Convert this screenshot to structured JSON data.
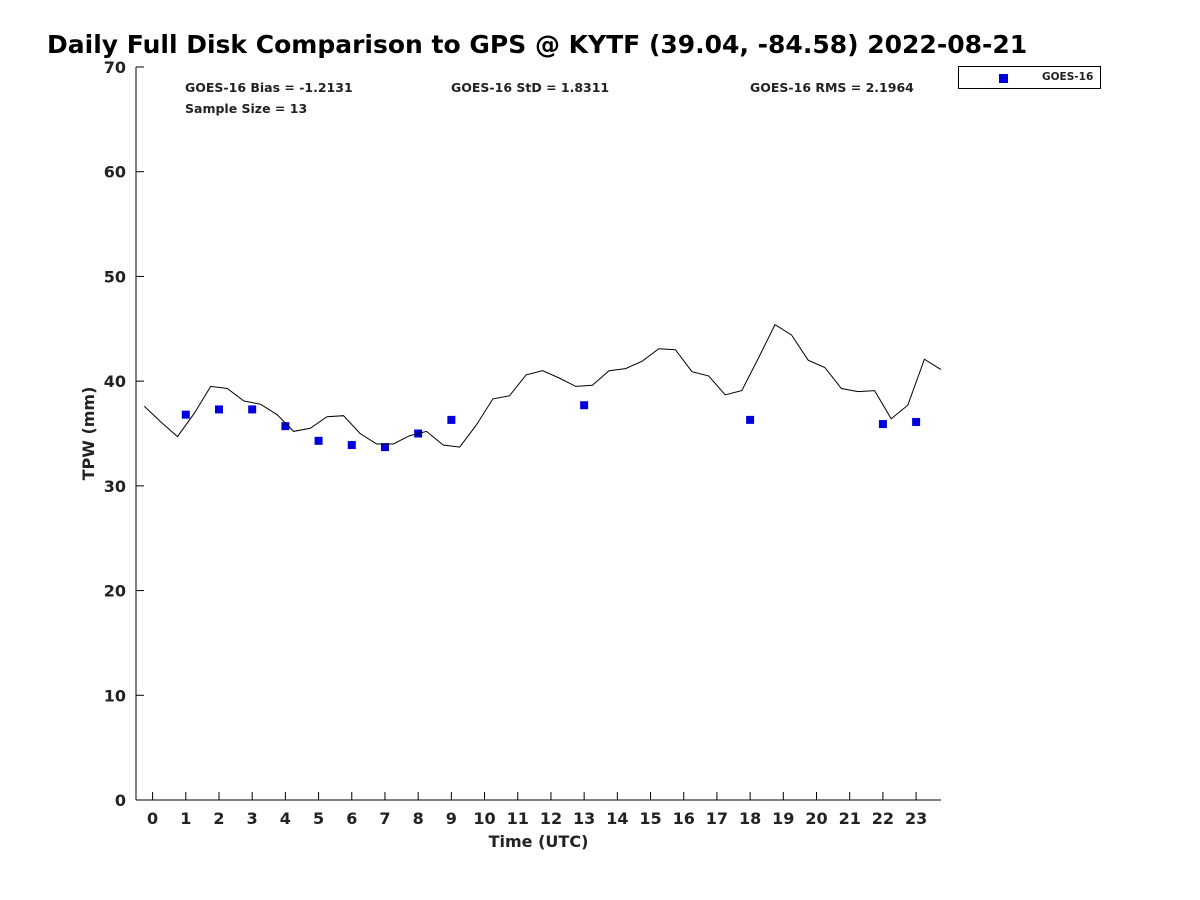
{
  "chart_data": {
    "type": "scatter",
    "title": "Daily Full Disk Comparison to GPS @ KYTF (39.04, -84.58) 2022-08-21",
    "xlabel": "Time (UTC)",
    "ylabel": "TPW (mm)",
    "xlim": [
      -0.5,
      23.75
    ],
    "ylim": [
      0,
      70
    ],
    "x_ticks": [
      0,
      1,
      2,
      3,
      4,
      5,
      6,
      7,
      8,
      9,
      10,
      11,
      12,
      13,
      14,
      15,
      16,
      17,
      18,
      19,
      20,
      21,
      22,
      23
    ],
    "y_ticks": [
      0,
      10,
      20,
      30,
      40,
      50,
      60,
      70
    ],
    "grid": false,
    "legend_position": "top-right outside",
    "stats": {
      "bias": "GOES-16 Bias = -1.2131",
      "std": "GOES-16 StD = 1.8311",
      "rms": "GOES-16 RMS = 2.1964",
      "sample_size": "Sample Size = 13"
    },
    "series": [
      {
        "name": "GOES-16",
        "kind": "markers",
        "color": "#0000dd",
        "marker": "square",
        "x": [
          1.0,
          2.0,
          3.0,
          4.0,
          5.0,
          6.0,
          7.0,
          8.0,
          9.0,
          13.0,
          18.0,
          22.0,
          23.0
        ],
        "y": [
          36.8,
          37.3,
          37.3,
          35.7,
          34.3,
          33.9,
          33.7,
          35.0,
          36.3,
          37.7,
          36.3,
          35.9,
          36.1
        ]
      },
      {
        "kind": "line",
        "color": "#000000",
        "x": [
          -0.25,
          0.25,
          0.75,
          1.25,
          1.75,
          2.25,
          2.75,
          3.25,
          3.75,
          4.25,
          4.75,
          5.25,
          5.75,
          6.25,
          6.75,
          7.25,
          7.75,
          8.25,
          8.75,
          9.25,
          9.75,
          10.25,
          10.75,
          11.25,
          11.75,
          12.25,
          12.75,
          13.25,
          13.75,
          14.25,
          14.75,
          15.25,
          15.75,
          16.25,
          16.75,
          17.25,
          17.75,
          18.25,
          18.75,
          19.25,
          19.75,
          20.25,
          20.75,
          21.25,
          21.75,
          22.25,
          22.75,
          23.25,
          23.75
        ],
        "y": [
          37.6,
          36.1,
          34.7,
          36.9,
          39.5,
          39.3,
          38.1,
          37.8,
          36.8,
          35.2,
          35.5,
          36.6,
          36.7,
          35.0,
          34.0,
          34.0,
          34.8,
          35.2,
          33.9,
          33.7,
          35.8,
          38.3,
          38.6,
          40.6,
          41.0,
          40.3,
          39.5,
          39.6,
          41.0,
          41.2,
          41.9,
          43.1,
          43.0,
          40.9,
          40.5,
          38.7,
          39.1,
          42.2,
          45.4,
          44.4,
          42.0,
          41.3,
          39.3,
          39.0,
          39.1,
          36.4,
          37.7,
          42.1,
          41.1
        ]
      }
    ]
  },
  "legend": {
    "label": "GOES-16",
    "marker_color": "#0000dd"
  }
}
